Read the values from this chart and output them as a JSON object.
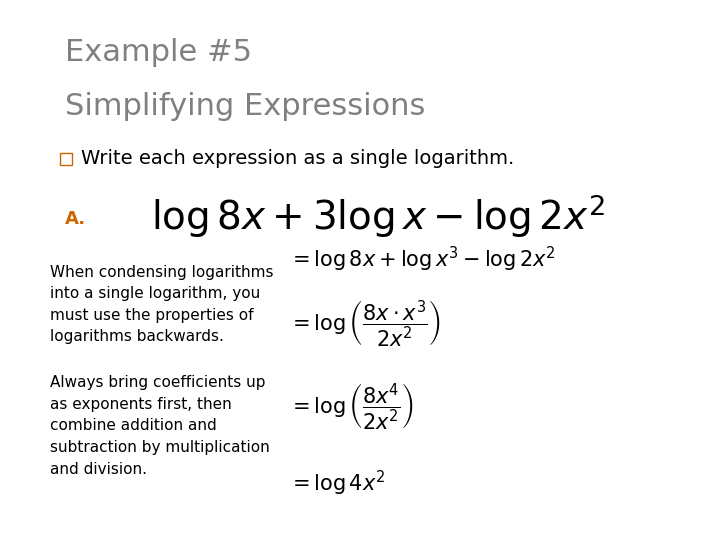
{
  "title_line1": "Example #5",
  "title_line2": "Simplifying Expressions",
  "title_color": "#808080",
  "write_bullet_color": "#CC6600",
  "write_text": "Write each expression as a single logarithm.",
  "label_A_color": "#CC6600",
  "label_A": "A.",
  "main_expr": "$\\log 8x + 3\\log x - \\log 2x^2$",
  "step1": "$= \\log 8x + \\log x^3 - \\log 2x^2$",
  "step2": "$= \\log\\left(\\dfrac{8x \\cdot x^3}{2x^2}\\right)$",
  "step3": "$= \\log\\left(\\dfrac{8x^4}{2x^2}\\right)$",
  "step4": "$= \\log 4x^2$",
  "text_left1": "When condensing logarithms\ninto a single logarithm, you\nmust use the properties of\nlogarithms backwards.",
  "text_left2": "Always bring coefficients up\nas exponents first, then\ncombine addition and\nsubtraction by multiplication\nand division.",
  "bg_color": "#ffffff",
  "border_color": "#cccccc",
  "text_color": "#000000",
  "body_fontsize": 11,
  "title_fontsize": 22,
  "write_fontsize": 14,
  "main_expr_fontsize": 28,
  "step_fontsize": 15
}
